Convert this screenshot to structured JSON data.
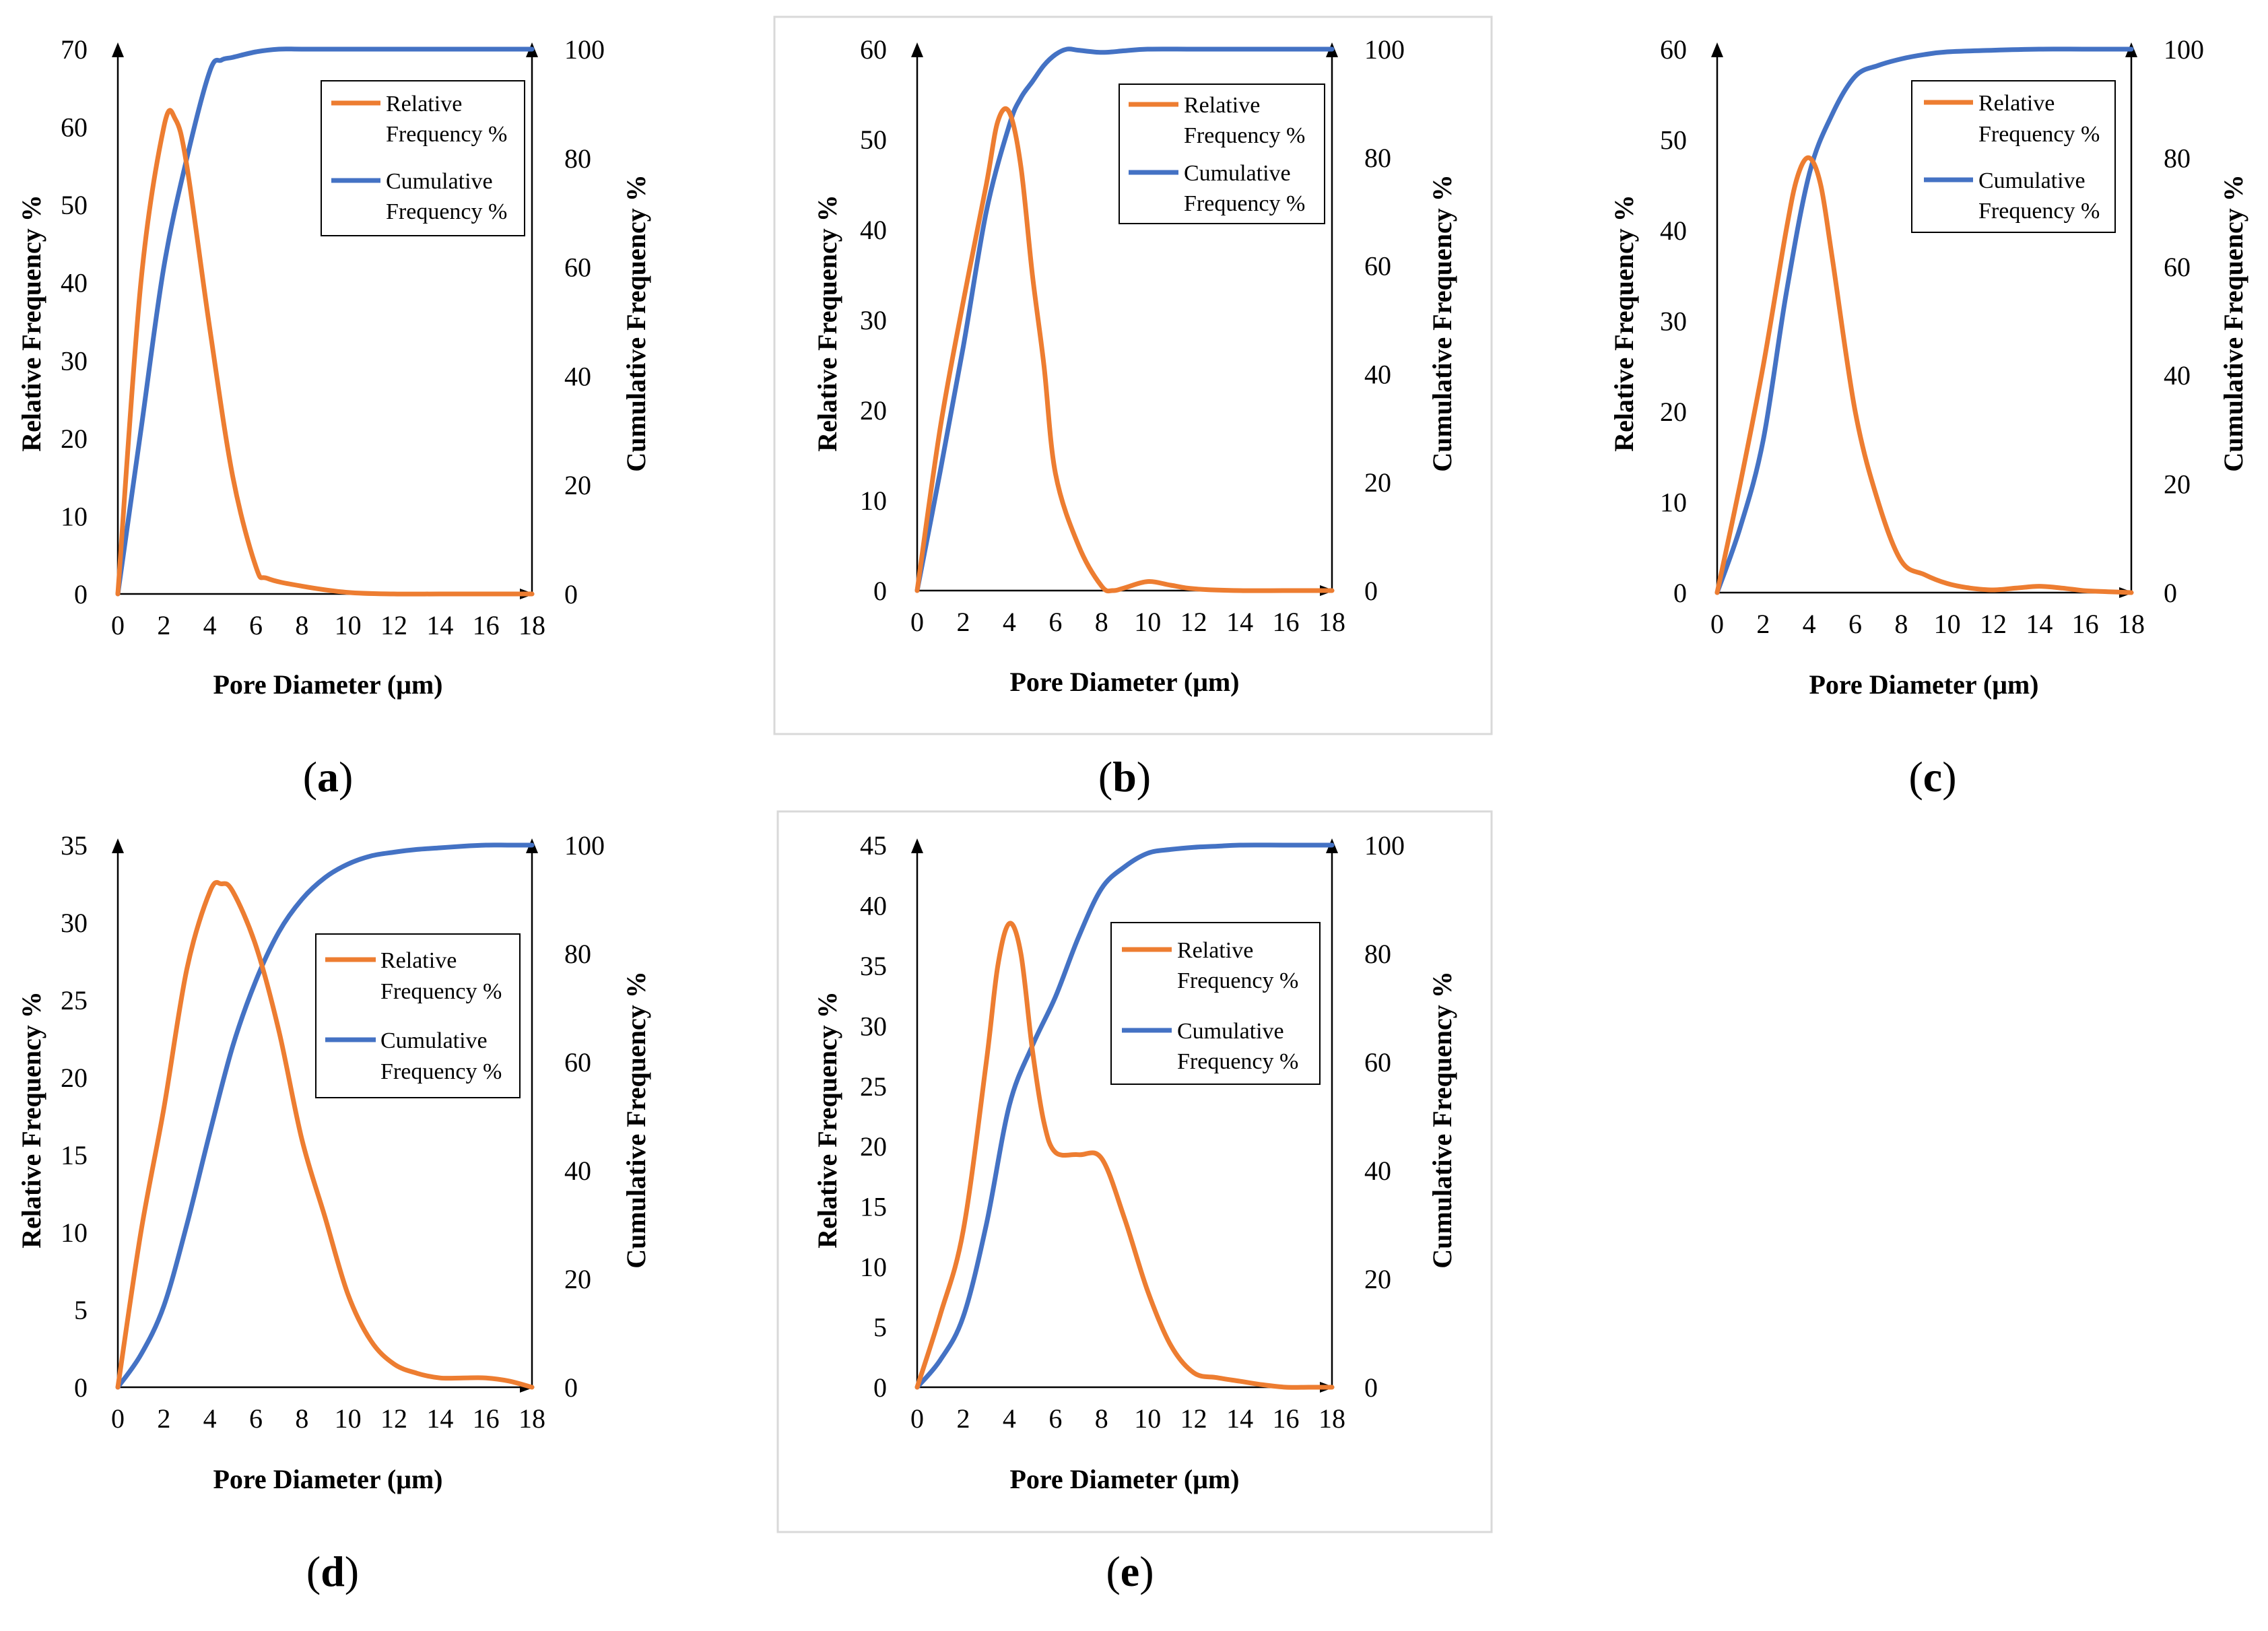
{
  "figure": {
    "colors": {
      "relative": "#ED7D31",
      "cumulative": "#4472C4",
      "axis": "#000000",
      "frame": "#D9D9D9"
    }
  },
  "chart_data": [
    {
      "type": "line",
      "panel": "a",
      "xlabel": "Pore Diameter (μm)",
      "ylabel": "Relative Frequency %",
      "y2label": "Cumulative Frequency %",
      "xlim": [
        0,
        18
      ],
      "ylim": [
        0,
        70
      ],
      "y2lim": [
        0,
        100
      ],
      "xticks": [
        0,
        2,
        4,
        6,
        8,
        10,
        12,
        14,
        16,
        18
      ],
      "yticks": [
        0,
        10,
        20,
        30,
        40,
        50,
        60,
        70
      ],
      "y2ticks": [
        0,
        20,
        40,
        60,
        80,
        100
      ],
      "framed": false,
      "legend": [
        "Relative",
        "Frequency %",
        "Cumulative",
        "Frequency %"
      ],
      "series": [
        {
          "name": "Relative Frequency %",
          "axis": "left",
          "x": [
            0,
            1,
            2,
            2.5,
            3,
            4,
            5,
            6,
            6.5,
            8,
            10,
            12,
            14,
            16,
            18
          ],
          "values": [
            0,
            40,
            60,
            61,
            55,
            34,
            15,
            3.5,
            2,
            1,
            0.2,
            0,
            0,
            0,
            0
          ]
        },
        {
          "name": "Cumulative Frequency %",
          "axis": "right",
          "x": [
            0,
            1,
            2,
            3,
            4,
            4.5,
            5,
            6,
            7,
            8,
            10,
            12,
            14,
            16,
            18
          ],
          "values": [
            0,
            30,
            60,
            80,
            96,
            98,
            98.5,
            99.5,
            100,
            100,
            100,
            100,
            100,
            100,
            100
          ]
        }
      ]
    },
    {
      "type": "line",
      "panel": "b",
      "xlabel": "Pore Diameter (μm)",
      "ylabel": "Relative Frequency %",
      "y2label": "Cumulative Frequency %",
      "xlim": [
        0,
        18
      ],
      "ylim": [
        0,
        60
      ],
      "y2lim": [
        0,
        100
      ],
      "xticks": [
        0,
        2,
        4,
        6,
        8,
        10,
        12,
        14,
        16,
        18
      ],
      "yticks": [
        0,
        10,
        20,
        30,
        40,
        50,
        60
      ],
      "y2ticks": [
        0,
        20,
        40,
        60,
        80,
        100
      ],
      "framed": true,
      "legend": [
        "Relative",
        "Frequency %",
        "Cumulative",
        "Frequency %"
      ],
      "series": [
        {
          "name": "Relative Frequency %",
          "axis": "left",
          "x": [
            0,
            1,
            2,
            3,
            3.5,
            4,
            4.5,
            5,
            5.5,
            6,
            7,
            8,
            8.5,
            9,
            10,
            11,
            12,
            14,
            16,
            18
          ],
          "values": [
            0,
            18,
            32,
            45,
            52,
            53,
            47,
            35,
            25,
            13,
            5,
            0.5,
            0,
            0.3,
            1,
            0.6,
            0.2,
            0,
            0,
            0
          ]
        },
        {
          "name": "Cumulative Frequency %",
          "axis": "right",
          "x": [
            0,
            1,
            2,
            3,
            4,
            4.5,
            5,
            5.5,
            6,
            6.5,
            7,
            8,
            9,
            10,
            12,
            14,
            16,
            18
          ],
          "values": [
            0,
            22,
            45,
            70,
            86,
            91,
            94,
            97,
            99,
            100,
            99.8,
            99.4,
            99.7,
            100,
            100,
            100,
            100,
            100
          ]
        }
      ]
    },
    {
      "type": "line",
      "panel": "c",
      "xlabel": "Pore Diameter (μm)",
      "ylabel": "Relative Frequency %",
      "y2label": "Cumulative Frequency %",
      "xlim": [
        0,
        18
      ],
      "ylim": [
        0,
        60
      ],
      "y2lim": [
        0,
        100
      ],
      "xticks": [
        0,
        2,
        4,
        6,
        8,
        10,
        12,
        14,
        16,
        18
      ],
      "yticks": [
        0,
        10,
        20,
        30,
        40,
        50,
        60
      ],
      "y2ticks": [
        0,
        20,
        40,
        60,
        80,
        100
      ],
      "framed": false,
      "legend": [
        "Relative",
        "Frequency %",
        "Cumulative",
        "Frequency %"
      ],
      "series": [
        {
          "name": "Relative Frequency %",
          "axis": "left",
          "x": [
            0,
            1,
            2,
            3,
            3.5,
            4,
            4.5,
            5,
            6,
            7,
            8,
            9,
            10,
            11,
            12,
            13,
            14,
            15,
            16,
            17,
            18
          ],
          "values": [
            0,
            12,
            25,
            40,
            46,
            48,
            45,
            37,
            20,
            10,
            3.5,
            2,
            1,
            0.5,
            0.3,
            0.5,
            0.7,
            0.5,
            0.2,
            0.1,
            0
          ]
        },
        {
          "name": "Cumulative Frequency %",
          "axis": "right",
          "x": [
            0,
            1,
            2,
            3,
            4,
            5,
            6,
            7,
            8,
            9,
            10,
            12,
            14,
            16,
            18
          ],
          "values": [
            0,
            12,
            28,
            55,
            77,
            88,
            95,
            97,
            98.2,
            99,
            99.5,
            99.8,
            100,
            100,
            100
          ]
        }
      ]
    },
    {
      "type": "line",
      "panel": "d",
      "xlabel": "Pore Diameter (μm)",
      "ylabel": "Relative Frequency %",
      "y2label": "Cumulative Frequency %",
      "xlim": [
        0,
        18
      ],
      "ylim": [
        0,
        35
      ],
      "y2lim": [
        0,
        100
      ],
      "xticks": [
        0,
        2,
        4,
        6,
        8,
        10,
        12,
        14,
        16,
        18
      ],
      "yticks": [
        0,
        5,
        10,
        15,
        20,
        25,
        30,
        35
      ],
      "y2ticks": [
        0,
        20,
        40,
        60,
        80,
        100
      ],
      "framed": false,
      "legend": [
        "Relative",
        "Frequency %",
        "Cumulative",
        "Frequency %"
      ],
      "series": [
        {
          "name": "Relative Frequency %",
          "axis": "left",
          "x": [
            0,
            1,
            2,
            3,
            4,
            4.5,
            5,
            6,
            7,
            8,
            9,
            10,
            11,
            12,
            13,
            14,
            15,
            16,
            17,
            18
          ],
          "values": [
            0,
            10,
            18,
            27,
            32,
            32.5,
            32,
            28.5,
            23,
            16,
            11,
            6,
            3,
            1.5,
            0.9,
            0.6,
            0.6,
            0.6,
            0.4,
            0
          ]
        },
        {
          "name": "Cumulative Frequency %",
          "axis": "right",
          "x": [
            0,
            1,
            2,
            3,
            4,
            5,
            6,
            7,
            8,
            9,
            10,
            11,
            12,
            13,
            14,
            15,
            16,
            17,
            18
          ],
          "values": [
            0,
            6,
            15,
            30,
            47,
            63,
            75,
            84,
            90,
            94,
            96.5,
            98,
            98.7,
            99.2,
            99.5,
            99.8,
            100,
            100,
            100
          ]
        }
      ]
    },
    {
      "type": "line",
      "panel": "e",
      "xlabel": "Pore Diameter (μm)",
      "ylabel": "Relative Frequency %",
      "y2label": "Cumulative Frequency %",
      "xlim": [
        0,
        18
      ],
      "ylim": [
        0,
        45
      ],
      "y2lim": [
        0,
        100
      ],
      "xticks": [
        0,
        2,
        4,
        6,
        8,
        10,
        12,
        14,
        16,
        18
      ],
      "yticks": [
        0,
        5,
        10,
        15,
        20,
        25,
        30,
        35,
        40,
        45
      ],
      "y2ticks": [
        0,
        20,
        40,
        60,
        80,
        100
      ],
      "framed": true,
      "legend": [
        "Relative",
        "Frequency %",
        "Cumulative",
        "Frequency %"
      ],
      "series": [
        {
          "name": "Relative Frequency %",
          "axis": "left",
          "x": [
            0,
            1,
            2,
            3,
            3.5,
            4,
            4.5,
            5,
            5.5,
            6,
            7,
            8,
            9,
            10,
            11,
            12,
            13,
            14,
            15,
            16,
            17,
            18
          ],
          "values": [
            0,
            6,
            13,
            27,
            35,
            38.5,
            36,
            28,
            22,
            19.5,
            19.3,
            19,
            14,
            8,
            3.5,
            1.2,
            0.8,
            0.5,
            0.2,
            0,
            0,
            0
          ]
        },
        {
          "name": "Cumulative Frequency %",
          "axis": "right",
          "x": [
            0,
            1,
            2,
            3,
            4,
            5,
            6,
            7,
            8,
            9,
            10,
            11,
            12,
            13,
            14,
            16,
            18
          ],
          "values": [
            0,
            5,
            13,
            30,
            52,
            63,
            72,
            83,
            92,
            96,
            98.5,
            99.2,
            99.6,
            99.8,
            100,
            100,
            100
          ]
        }
      ]
    }
  ],
  "panel_labels": [
    {
      "open": "(",
      "letter": "a",
      "close": ")"
    },
    {
      "open": "(",
      "letter": "b",
      "close": ")"
    },
    {
      "open": "(",
      "letter": "c",
      "close": ")"
    },
    {
      "open": "(",
      "letter": "d",
      "close": ")"
    },
    {
      "open": "(",
      "letter": "e",
      "close": ")"
    }
  ]
}
